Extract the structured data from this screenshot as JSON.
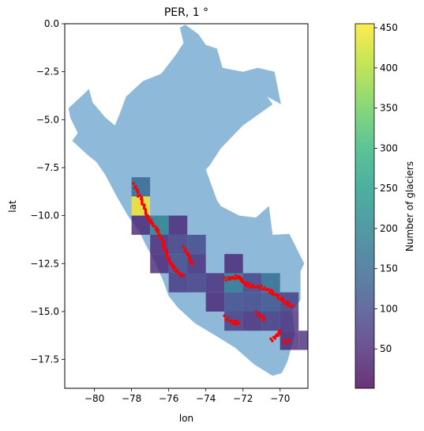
{
  "chart_data": {
    "type": "heatmap",
    "title": "PER, 1 °",
    "xlabel": "lon",
    "ylabel": "lat",
    "xlim": [
      -81.6,
      -68.5
    ],
    "ylim": [
      -19.0,
      0.0
    ],
    "xticks": [
      -80,
      -78,
      -76,
      -74,
      -72,
      -70
    ],
    "xtick_labels": [
      "−80",
      "−78",
      "−76",
      "−74",
      "−72",
      "−70"
    ],
    "yticks": [
      0.0,
      -2.5,
      -5.0,
      -7.5,
      -10.0,
      -12.5,
      -15.0,
      -17.5
    ],
    "ytick_labels": [
      "0.0",
      "−2.5",
      "−5.0",
      "−7.5",
      "−10.0",
      "−12.5",
      "−15.0",
      "−17.5"
    ],
    "colorbar": {
      "label": "Number of glaciers",
      "vmin": 1,
      "vmax": 455,
      "ticks": [
        50,
        100,
        150,
        200,
        250,
        300,
        350,
        400,
        450
      ],
      "colormap": "viridis",
      "alpha": 0.8
    },
    "country_fill": "#8fb9d9",
    "glacier_point_color": "#ff0000",
    "cells": [
      {
        "lon": -78,
        "lat": -8,
        "count": 150
      },
      {
        "lon": -78,
        "lat": -9,
        "count": 455
      },
      {
        "lon": -78,
        "lat": -10,
        "count": 45
      },
      {
        "lon": -77,
        "lat": -10,
        "count": 200
      },
      {
        "lon": -76,
        "lat": -10,
        "count": 45
      },
      {
        "lon": -77,
        "lat": -11,
        "count": 50
      },
      {
        "lon": -76,
        "lat": -11,
        "count": 80
      },
      {
        "lon": -75,
        "lat": -11,
        "count": 95
      },
      {
        "lon": -77,
        "lat": -12,
        "count": 45
      },
      {
        "lon": -76,
        "lat": -12,
        "count": 95
      },
      {
        "lon": -75,
        "lat": -12,
        "count": 55
      },
      {
        "lon": -73,
        "lat": -12,
        "count": 45
      },
      {
        "lon": -76,
        "lat": -13,
        "count": 70
      },
      {
        "lon": -75,
        "lat": -13,
        "count": 80
      },
      {
        "lon": -74,
        "lat": -13,
        "count": 55
      },
      {
        "lon": -73,
        "lat": -13,
        "count": 180
      },
      {
        "lon": -72,
        "lat": -13,
        "count": 85
      },
      {
        "lon": -71,
        "lat": -13,
        "count": 160
      },
      {
        "lon": -74,
        "lat": -14,
        "count": 45
      },
      {
        "lon": -73,
        "lat": -14,
        "count": 100
      },
      {
        "lon": -72,
        "lat": -14,
        "count": 95
      },
      {
        "lon": -71,
        "lat": -14,
        "count": 110
      },
      {
        "lon": -70,
        "lat": -14,
        "count": 75
      },
      {
        "lon": -73,
        "lat": -15,
        "count": 75
      },
      {
        "lon": -72,
        "lat": -15,
        "count": 55
      },
      {
        "lon": -71,
        "lat": -15,
        "count": 70
      },
      {
        "lon": -70,
        "lat": -15,
        "count": 55
      },
      {
        "lon": -70,
        "lat": -16,
        "count": 45
      },
      {
        "lon": -69,
        "lat": -16,
        "count": 55
      }
    ],
    "country_outline": [
      [
        -75.1,
        -0.05
      ],
      [
        -74.4,
        -0.55
      ],
      [
        -74.0,
        -1.1
      ],
      [
        -73.4,
        -1.3
      ],
      [
        -73.1,
        -2.3
      ],
      [
        -72.0,
        -2.5
      ],
      [
        -71.2,
        -2.3
      ],
      [
        -70.3,
        -2.5
      ],
      [
        -69.95,
        -4.2
      ],
      [
        -70.7,
        -3.8
      ],
      [
        -70.4,
        -4.2
      ],
      [
        -72.0,
        -5.3
      ],
      [
        -73.2,
        -6.5
      ],
      [
        -73.8,
        -7.4
      ],
      [
        -74.0,
        -7.6
      ],
      [
        -73.4,
        -9.2
      ],
      [
        -73.2,
        -9.5
      ],
      [
        -72.2,
        -10.0
      ],
      [
        -71.3,
        -10.1
      ],
      [
        -70.6,
        -9.5
      ],
      [
        -70.4,
        -11.0
      ],
      [
        -69.5,
        -10.95
      ],
      [
        -68.7,
        -12.5
      ],
      [
        -68.9,
        -12.9
      ],
      [
        -68.9,
        -14.4
      ],
      [
        -69.35,
        -14.95
      ],
      [
        -69.2,
        -16.2
      ],
      [
        -69.6,
        -17.6
      ],
      [
        -69.9,
        -18.2
      ],
      [
        -70.4,
        -18.35
      ],
      [
        -71.4,
        -17.75
      ],
      [
        -72.4,
        -16.9
      ],
      [
        -73.4,
        -16.3
      ],
      [
        -74.6,
        -15.6
      ],
      [
        -75.5,
        -14.8
      ],
      [
        -76.0,
        -14.2
      ],
      [
        -76.3,
        -13.4
      ],
      [
        -76.8,
        -12.3
      ],
      [
        -77.2,
        -11.6
      ],
      [
        -77.6,
        -10.8
      ],
      [
        -78.2,
        -10.0
      ],
      [
        -78.8,
        -9.0
      ],
      [
        -79.4,
        -7.9
      ],
      [
        -79.9,
        -7.2
      ],
      [
        -80.3,
        -6.9
      ],
      [
        -81.2,
        -6.1
      ],
      [
        -80.9,
        -5.7
      ],
      [
        -81.3,
        -4.9
      ],
      [
        -81.4,
        -4.4
      ],
      [
        -80.5,
        -3.6
      ],
      [
        -80.3,
        -3.4
      ],
      [
        -80.1,
        -4.1
      ],
      [
        -79.4,
        -4.9
      ],
      [
        -78.9,
        -5.3
      ],
      [
        -78.6,
        -4.6
      ],
      [
        -78.3,
        -3.8
      ],
      [
        -77.4,
        -3.0
      ],
      [
        -76.4,
        -2.6
      ],
      [
        -75.6,
        -1.6
      ],
      [
        -75.2,
        -1.0
      ],
      [
        -75.4,
        -0.2
      ]
    ],
    "glacier_chains": [
      [
        [
          -77.9,
          -8.4
        ],
        [
          -77.6,
          -9.0
        ],
        [
          -77.4,
          -9.4
        ],
        [
          -77.25,
          -9.7
        ],
        [
          -77.1,
          -10.0
        ],
        [
          -76.85,
          -10.4
        ],
        [
          -76.6,
          -10.9
        ],
        [
          -76.4,
          -11.3
        ],
        [
          -76.2,
          -11.8
        ],
        [
          -76.0,
          -12.2
        ],
        [
          -75.75,
          -12.6
        ],
        [
          -75.4,
          -13.0
        ],
        [
          -75.2,
          -13.15
        ]
      ],
      [
        [
          -75.2,
          -11.7
        ],
        [
          -75.0,
          -12.1
        ],
        [
          -74.9,
          -12.35
        ],
        [
          -74.7,
          -12.5
        ]
      ],
      [
        [
          -73.0,
          -13.3
        ],
        [
          -72.6,
          -13.25
        ],
        [
          -72.3,
          -13.15
        ],
        [
          -72.1,
          -13.3
        ],
        [
          -71.8,
          -13.55
        ],
        [
          -71.4,
          -13.7
        ],
        [
          -71.0,
          -13.75
        ],
        [
          -70.7,
          -13.9
        ],
        [
          -70.3,
          -14.1
        ],
        [
          -69.95,
          -14.3
        ],
        [
          -69.6,
          -14.55
        ],
        [
          -69.3,
          -14.7
        ]
      ],
      [
        [
          -73.0,
          -15.3
        ],
        [
          -72.7,
          -15.55
        ],
        [
          -72.2,
          -15.6
        ]
      ],
      [
        [
          -71.3,
          -15.1
        ],
        [
          -71.0,
          -15.3
        ],
        [
          -70.9,
          -15.45
        ]
      ],
      [
        [
          -70.5,
          -16.5
        ],
        [
          -70.25,
          -16.25
        ],
        [
          -70.0,
          -16.0
        ]
      ],
      [
        [
          -69.8,
          -16.6
        ],
        [
          -69.5,
          -16.5
        ]
      ]
    ]
  }
}
